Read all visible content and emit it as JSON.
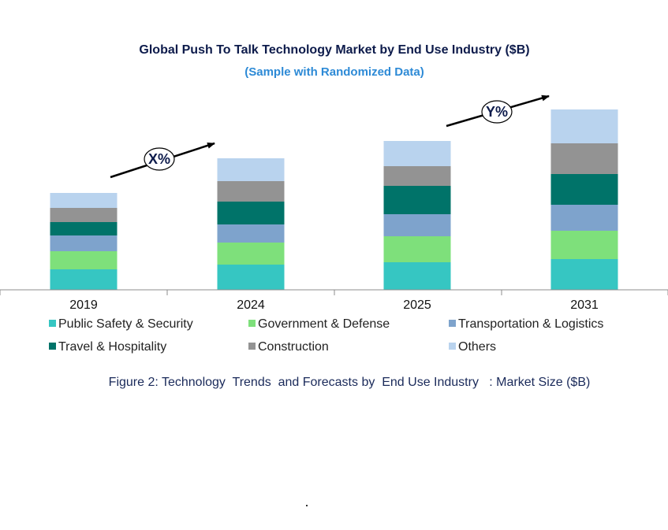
{
  "chart_data": {
    "type": "bar",
    "stacked": true,
    "title": "Global Push To Talk Technology Market by End Use Industry ($B)",
    "subtitle": "(Sample with Randomized Data)",
    "categories": [
      "2019",
      "2024",
      "2025",
      "2031"
    ],
    "series": [
      {
        "name": "Public Safety & Security",
        "color": "#36c6c2",
        "values": [
          26,
          32,
          35,
          39
        ]
      },
      {
        "name": "Government & Defense",
        "color": "#7ee07b",
        "values": [
          23,
          28,
          33,
          36
        ]
      },
      {
        "name": "Transportation & Logistics",
        "color": "#7ea3cc",
        "values": [
          20,
          23,
          28,
          33
        ]
      },
      {
        "name": "Travel & Hospitality",
        "color": "#007369",
        "values": [
          17,
          29,
          36,
          39
        ]
      },
      {
        "name": "Construction",
        "color": "#939393",
        "values": [
          18,
          26,
          25,
          39
        ]
      },
      {
        "name": "Others",
        "color": "#b9d3ee",
        "values": [
          19,
          29,
          32,
          43
        ]
      }
    ],
    "ylim": [
      0,
      240
    ],
    "legend_position": "bottom",
    "grid": false,
    "annotations": [
      {
        "text": "X%",
        "between": [
          "2019",
          "2024"
        ]
      },
      {
        "text": "Y%",
        "between": [
          "2025",
          "2031"
        ]
      }
    ],
    "caption": "Figure 2: Technology  Trends  and Forecasts by  End Use Industry   : Market Size ($B)"
  }
}
